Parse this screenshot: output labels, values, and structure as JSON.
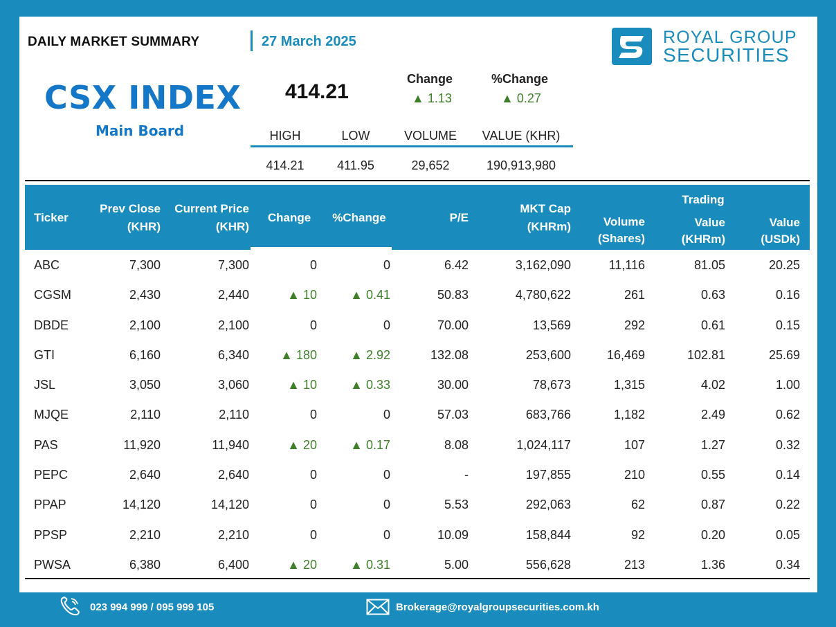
{
  "header": {
    "title": "DAILY MARKET SUMMARY",
    "date": "27 March 2025"
  },
  "logo": {
    "line1": "ROYAL GROUP",
    "line2": "SECURITIES",
    "icon": "rgs-logo-icon"
  },
  "index": {
    "name": "CSX INDEX",
    "board": "Main Board",
    "value": "414.21",
    "change_label": "Change",
    "pct_change_label": "%Change",
    "change": "▲ 1.13",
    "pct_change": "▲ 0.27"
  },
  "stats": {
    "headers": [
      "HIGH",
      "LOW",
      "VOLUME",
      "VALUE (KHR)"
    ],
    "values": [
      "414.21",
      "411.95",
      "29,652",
      "190,913,980"
    ]
  },
  "table": {
    "headers": {
      "ticker": "Ticker",
      "prev_close_1": "Prev Close",
      "prev_close_2": "(KHR)",
      "current_price_1": "Current Price",
      "current_price_2": "(KHR)",
      "change": "Change",
      "pct_change": "%Change",
      "pe": "P/E",
      "mkt_cap_1": "MKT Cap",
      "mkt_cap_2": "(KHRm)",
      "volume_1": "Volume",
      "volume_2": "(Shares)",
      "trading": "Trading",
      "value_khr_1": "Value",
      "value_khr_2": "(KHRm)",
      "value_usd_1": "Value",
      "value_usd_2": "(USDk)"
    },
    "rows": [
      {
        "ticker": "ABC",
        "prev": "7,300",
        "curr": "7,300",
        "chg": "0",
        "pct": "0",
        "pe": "6.42",
        "mcap": "3,162,090",
        "vol": "11,116",
        "val_khr": "81.05",
        "val_usd": "20.25",
        "up": false
      },
      {
        "ticker": "CGSM",
        "prev": "2,430",
        "curr": "2,440",
        "chg": "▲ 10",
        "pct": "▲ 0.41",
        "pe": "50.83",
        "mcap": "4,780,622",
        "vol": "261",
        "val_khr": "0.63",
        "val_usd": "0.16",
        "up": true
      },
      {
        "ticker": "DBDE",
        "prev": "2,100",
        "curr": "2,100",
        "chg": "0",
        "pct": "0",
        "pe": "70.00",
        "mcap": "13,569",
        "vol": "292",
        "val_khr": "0.61",
        "val_usd": "0.15",
        "up": false
      },
      {
        "ticker": "GTI",
        "prev": "6,160",
        "curr": "6,340",
        "chg": "▲ 180",
        "pct": "▲ 2.92",
        "pe": "132.08",
        "mcap": "253,600",
        "vol": "16,469",
        "val_khr": "102.81",
        "val_usd": "25.69",
        "up": true
      },
      {
        "ticker": "JSL",
        "prev": "3,050",
        "curr": "3,060",
        "chg": "▲ 10",
        "pct": "▲ 0.33",
        "pe": "30.00",
        "mcap": "78,673",
        "vol": "1,315",
        "val_khr": "4.02",
        "val_usd": "1.00",
        "up": true
      },
      {
        "ticker": "MJQE",
        "prev": "2,110",
        "curr": "2,110",
        "chg": "0",
        "pct": "0",
        "pe": "57.03",
        "mcap": "683,766",
        "vol": "1,182",
        "val_khr": "2.49",
        "val_usd": "0.62",
        "up": false
      },
      {
        "ticker": "PAS",
        "prev": "11,920",
        "curr": "11,940",
        "chg": "▲ 20",
        "pct": "▲ 0.17",
        "pe": "8.08",
        "mcap": "1,024,117",
        "vol": "107",
        "val_khr": "1.27",
        "val_usd": "0.32",
        "up": true
      },
      {
        "ticker": "PEPC",
        "prev": "2,640",
        "curr": "2,640",
        "chg": "0",
        "pct": "0",
        "pe": "-",
        "mcap": "197,855",
        "vol": "210",
        "val_khr": "0.55",
        "val_usd": "0.14",
        "up": false
      },
      {
        "ticker": "PPAP",
        "prev": "14,120",
        "curr": "14,120",
        "chg": "0",
        "pct": "0",
        "pe": "5.53",
        "mcap": "292,063",
        "vol": "62",
        "val_khr": "0.87",
        "val_usd": "0.22",
        "up": false
      },
      {
        "ticker": "PPSP",
        "prev": "2,210",
        "curr": "2,210",
        "chg": "0",
        "pct": "0",
        "pe": "10.09",
        "mcap": "158,844",
        "vol": "92",
        "val_khr": "0.20",
        "val_usd": "0.05",
        "up": false
      },
      {
        "ticker": "PWSA",
        "prev": "6,380",
        "curr": "6,400",
        "chg": "▲ 20",
        "pct": "▲ 0.31",
        "pe": "5.00",
        "mcap": "556,628",
        "vol": "213",
        "val_khr": "1.36",
        "val_usd": "0.34",
        "up": true
      }
    ]
  },
  "footer": {
    "phone": "023 994 999 / 095 999 105",
    "email": "Brokerage@royalgroupsecurities.com.kh",
    "phone_icon": "phone-icon",
    "mail_icon": "mail-icon"
  },
  "colors": {
    "brand": "#1a8bbd",
    "index_blue": "#1577c7",
    "up_green": "#3f7f2a"
  }
}
